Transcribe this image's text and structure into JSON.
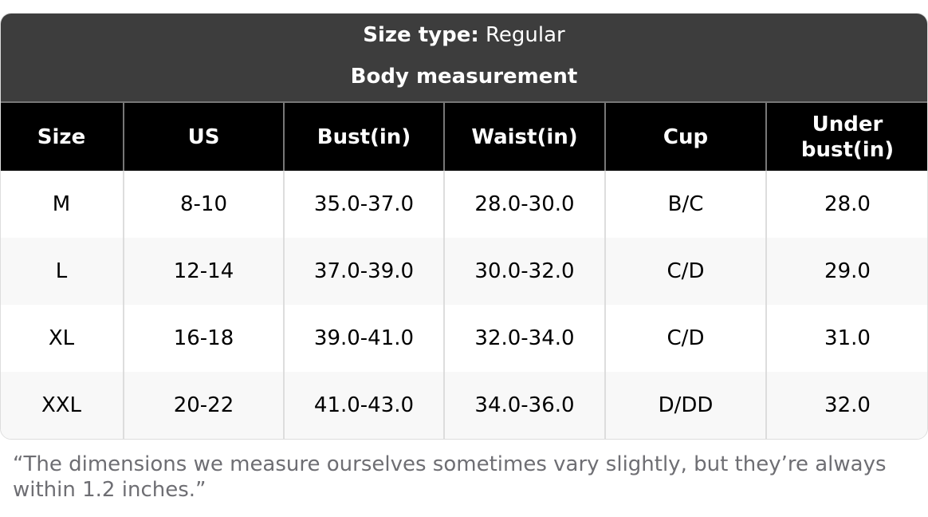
{
  "header": {
    "size_type_label": "Size type:",
    "size_type_value": "Regular",
    "section_title": "Body measurement"
  },
  "table": {
    "columns": [
      "Size",
      "US",
      "Bust(in)",
      "Waist(in)",
      "Cup",
      "Under bust(in)"
    ],
    "rows": [
      [
        "M",
        "8-10",
        "35.0-37.0",
        "28.0-30.0",
        "B/C",
        "28.0"
      ],
      [
        "L",
        "12-14",
        "37.0-39.0",
        "30.0-32.0",
        "C/D",
        "29.0"
      ],
      [
        "XL",
        "16-18",
        "39.0-41.0",
        "32.0-34.0",
        "C/D",
        "31.0"
      ],
      [
        "XXL",
        "20-22",
        "41.0-43.0",
        "34.0-36.0",
        "D/DD",
        "32.0"
      ]
    ]
  },
  "footnote": "“The dimensions we measure ourselves sometimes vary slightly, but they’re always within 1.2 inches.”"
}
